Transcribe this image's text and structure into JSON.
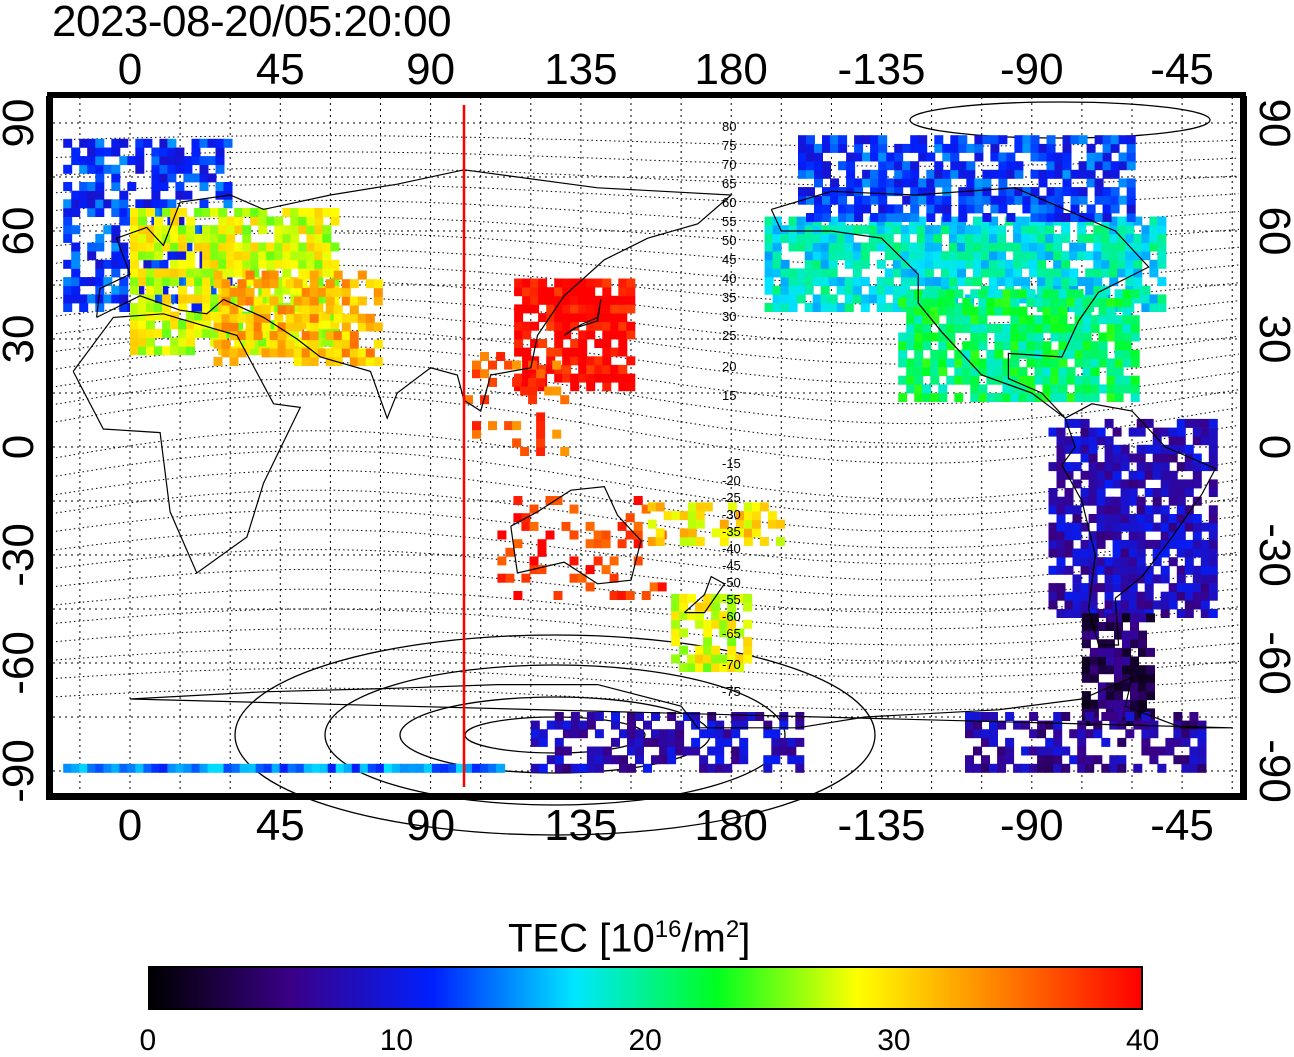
{
  "timestamp": "2023-08-20/05:20:00",
  "map": {
    "top_lon_labels": [
      "0",
      "45",
      "90",
      "135",
      "180",
      "-135",
      "-90",
      "-45"
    ],
    "bottom_lon_labels": [
      "0",
      "45",
      "90",
      "135",
      "180",
      "-135",
      "-90",
      "-45"
    ],
    "left_lat_labels": [
      "90",
      "60",
      "30",
      "0",
      "-30",
      "-60",
      "-90"
    ],
    "right_lat_labels": [
      "90",
      "60",
      "30",
      "0",
      "-30",
      "-60",
      "-90"
    ],
    "contour_labels_north": [
      "80",
      "75",
      "70",
      "65",
      "60",
      "55",
      "50",
      "45",
      "40",
      "35",
      "30",
      "25",
      "20",
      "15"
    ],
    "contour_labels_south": [
      "-15",
      "-20",
      "-25",
      "-30",
      "-35",
      "-40",
      "-45",
      "-50",
      "-55",
      "-60",
      "-65",
      "-70",
      "-75"
    ],
    "marker_line_lon": 100,
    "marker_line_color": "#ff0000"
  },
  "colorbar": {
    "title_prefix": "TEC  [10",
    "title_exp1": "16",
    "title_mid": "/m",
    "title_exp2": "2",
    "title_suffix": "]",
    "ticks": [
      "0",
      "10",
      "20",
      "30",
      "40"
    ],
    "min": 0,
    "max": 40,
    "colors": [
      "#000000",
      "#3a0088",
      "#0020ff",
      "#00e6ff",
      "#00ff20",
      "#ffff00",
      "#ff8000",
      "#ff0000"
    ]
  },
  "tec_regions": [
    {
      "name": "europe",
      "tec": 12
    },
    {
      "name": "middle-east",
      "tec": 36
    },
    {
      "name": "east-asia",
      "tec": 40
    },
    {
      "name": "north-america",
      "tec": 18
    },
    {
      "name": "south-america",
      "tec": 8
    },
    {
      "name": "australia",
      "tec": 38
    },
    {
      "name": "new-zealand",
      "tec": 28
    },
    {
      "name": "antarctica",
      "tec": 11
    }
  ]
}
